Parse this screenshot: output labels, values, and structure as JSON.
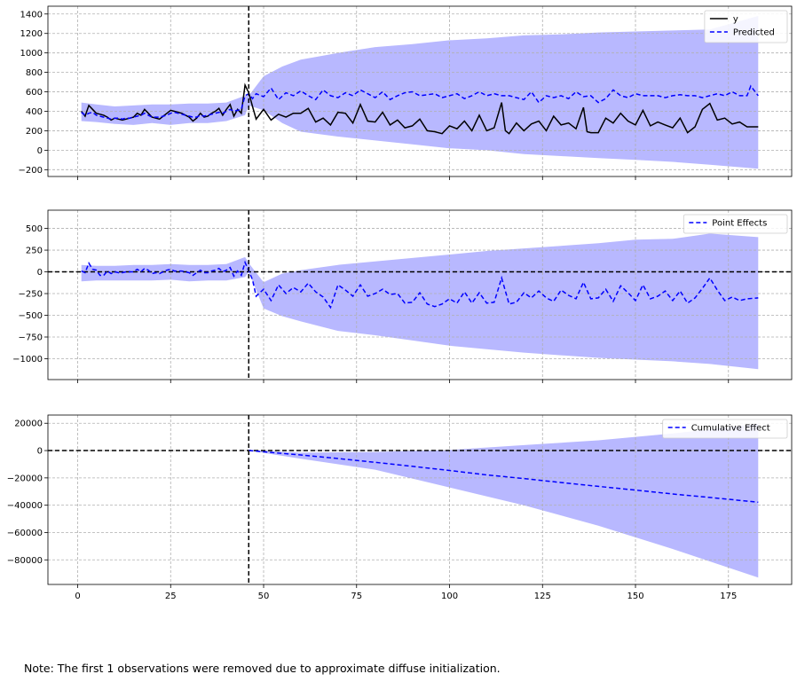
{
  "chart_data": [
    {
      "type": "line",
      "title": "",
      "xlabel": "",
      "ylabel": "",
      "xlim": [
        -8,
        192
      ],
      "ylim": [
        -270,
        1480
      ],
      "x_ticks": [
        0,
        25,
        50,
        75,
        100,
        125,
        150,
        175
      ],
      "show_x_tick_labels": false,
      "y_ticks": [
        -200,
        0,
        200,
        400,
        600,
        800,
        1000,
        1200,
        1400
      ],
      "y_tick_labels": [
        "−200",
        "0",
        "200",
        "400",
        "600",
        "800",
        "1000",
        "1200",
        "1400"
      ],
      "grid": true,
      "legend_position": "top-right",
      "vline_x": 46,
      "hline_y": null,
      "band": {
        "x": [
          1,
          5,
          10,
          15,
          20,
          25,
          30,
          35,
          40,
          45,
          46,
          50,
          55,
          60,
          70,
          80,
          90,
          100,
          110,
          120,
          130,
          140,
          150,
          160,
          170,
          183
        ],
        "upper": [
          490,
          470,
          450,
          460,
          470,
          470,
          480,
          480,
          490,
          560,
          560,
          760,
          860,
          930,
          1000,
          1060,
          1090,
          1130,
          1150,
          1180,
          1190,
          1210,
          1220,
          1230,
          1240,
          1380
        ],
        "lower": [
          300,
          290,
          270,
          260,
          280,
          260,
          280,
          280,
          300,
          360,
          460,
          410,
          280,
          190,
          140,
          100,
          60,
          20,
          0,
          -40,
          -60,
          -80,
          -100,
          -120,
          -150,
          -190
        ]
      },
      "series": [
        {
          "name": "y",
          "color": "#000000",
          "dash": "solid",
          "x": [
            1,
            2,
            3,
            4,
            5,
            6,
            7,
            8,
            9,
            10,
            11,
            12,
            13,
            14,
            15,
            16,
            17,
            18,
            19,
            20,
            21,
            22,
            23,
            24,
            25,
            26,
            27,
            28,
            29,
            30,
            31,
            32,
            33,
            34,
            35,
            36,
            37,
            38,
            39,
            40,
            41,
            42,
            43,
            44,
            45,
            46,
            47,
            48,
            50,
            52,
            54,
            56,
            58,
            60,
            62,
            64,
            66,
            68,
            70,
            72,
            74,
            76,
            78,
            80,
            82,
            84,
            86,
            88,
            90,
            92,
            94,
            96,
            98,
            100,
            102,
            104,
            106,
            108,
            110,
            112,
            114,
            115,
            116,
            118,
            120,
            122,
            124,
            126,
            128,
            130,
            132,
            134,
            136,
            137,
            138,
            140,
            142,
            144,
            146,
            148,
            150,
            152,
            154,
            156,
            158,
            160,
            162,
            164,
            166,
            168,
            170,
            172,
            174,
            176,
            178,
            180,
            183
          ],
          "y": [
            400,
            350,
            460,
            420,
            380,
            370,
            360,
            340,
            310,
            330,
            320,
            310,
            320,
            330,
            340,
            380,
            360,
            420,
            380,
            340,
            330,
            320,
            350,
            380,
            410,
            400,
            390,
            380,
            360,
            340,
            300,
            330,
            380,
            340,
            350,
            380,
            400,
            430,
            360,
            420,
            470,
            350,
            420,
            380,
            670,
            590,
            450,
            320,
            420,
            310,
            370,
            340,
            380,
            380,
            430,
            290,
            330,
            260,
            390,
            380,
            280,
            470,
            300,
            290,
            390,
            260,
            310,
            230,
            250,
            320,
            200,
            190,
            170,
            250,
            220,
            300,
            200,
            360,
            200,
            230,
            490,
            200,
            170,
            280,
            200,
            270,
            300,
            200,
            350,
            260,
            280,
            220,
            440,
            190,
            180,
            180,
            330,
            280,
            380,
            300,
            260,
            410,
            250,
            290,
            260,
            230,
            330,
            180,
            240,
            420,
            480,
            310,
            330,
            270,
            290,
            240,
            240
          ]
        },
        {
          "name": "Predicted",
          "color": "#0000ff",
          "dash": "dashed",
          "x": [
            1,
            2,
            3,
            4,
            5,
            6,
            7,
            8,
            9,
            10,
            11,
            12,
            13,
            14,
            15,
            16,
            17,
            18,
            19,
            20,
            21,
            22,
            23,
            24,
            25,
            26,
            27,
            28,
            29,
            30,
            31,
            32,
            33,
            34,
            35,
            36,
            37,
            38,
            39,
            40,
            41,
            42,
            43,
            44,
            45,
            46,
            47,
            48,
            50,
            52,
            54,
            56,
            58,
            60,
            62,
            64,
            66,
            68,
            70,
            72,
            74,
            76,
            78,
            80,
            82,
            84,
            86,
            88,
            90,
            92,
            94,
            96,
            98,
            100,
            102,
            104,
            106,
            108,
            110,
            112,
            114,
            116,
            118,
            120,
            122,
            124,
            126,
            128,
            130,
            132,
            134,
            136,
            138,
            140,
            142,
            144,
            146,
            148,
            150,
            152,
            154,
            156,
            158,
            160,
            162,
            164,
            166,
            168,
            170,
            172,
            174,
            176,
            178,
            180,
            181,
            183
          ],
          "y": [
            390,
            360,
            380,
            390,
            360,
            350,
            340,
            330,
            320,
            330,
            330,
            320,
            330,
            330,
            340,
            350,
            360,
            380,
            360,
            340,
            340,
            340,
            350,
            360,
            380,
            390,
            380,
            370,
            360,
            350,
            340,
            340,
            360,
            350,
            360,
            370,
            380,
            390,
            380,
            400,
            420,
            400,
            410,
            420,
            560,
            580,
            530,
            580,
            550,
            640,
            520,
            590,
            560,
            610,
            560,
            520,
            620,
            560,
            540,
            590,
            560,
            620,
            580,
            540,
            600,
            520,
            560,
            590,
            600,
            560,
            570,
            580,
            540,
            560,
            580,
            530,
            560,
            600,
            560,
            580,
            560,
            560,
            540,
            520,
            600,
            490,
            560,
            540,
            560,
            530,
            600,
            550,
            560,
            490,
            530,
            620,
            560,
            540,
            580,
            560,
            560,
            560,
            540,
            560,
            570,
            560,
            560,
            540,
            560,
            580,
            560,
            600,
            560,
            560,
            660,
            560
          ]
        }
      ]
    },
    {
      "type": "line",
      "title": "",
      "xlabel": "",
      "ylabel": "",
      "xlim": [
        -8,
        192
      ],
      "ylim": [
        -1240,
        710
      ],
      "x_ticks": [
        0,
        25,
        50,
        75,
        100,
        125,
        150,
        175
      ],
      "show_x_tick_labels": false,
      "y_ticks": [
        -1000,
        -750,
        -500,
        -250,
        0,
        250,
        500
      ],
      "y_tick_labels": [
        "−1000",
        "−750",
        "−500",
        "−250",
        "0",
        "250",
        "500"
      ],
      "grid": true,
      "legend_position": "top-right",
      "vline_x": 46,
      "hline_y": 0,
      "band": {
        "x": [
          1,
          5,
          10,
          15,
          20,
          25,
          30,
          35,
          40,
          45,
          46,
          50,
          55,
          60,
          70,
          80,
          90,
          100,
          110,
          120,
          130,
          140,
          150,
          160,
          170,
          183
        ],
        "upper": [
          80,
          70,
          70,
          80,
          80,
          90,
          80,
          80,
          90,
          170,
          100,
          -120,
          -20,
          20,
          80,
          120,
          160,
          200,
          240,
          270,
          300,
          330,
          370,
          380,
          440,
          400
        ],
        "lower": [
          -110,
          -100,
          -100,
          -100,
          -100,
          -90,
          -110,
          -100,
          -100,
          -60,
          0,
          -420,
          -510,
          -570,
          -680,
          -730,
          -790,
          -850,
          -890,
          -930,
          -960,
          -990,
          -1010,
          -1030,
          -1060,
          -1120
        ]
      },
      "series": [
        {
          "name": "Point Effects",
          "color": "#0000ff",
          "dash": "dashed",
          "x": [
            1,
            2,
            3,
            4,
            5,
            6,
            7,
            8,
            9,
            10,
            11,
            12,
            13,
            14,
            15,
            16,
            17,
            18,
            19,
            20,
            21,
            22,
            23,
            24,
            25,
            26,
            27,
            28,
            29,
            30,
            31,
            32,
            33,
            34,
            35,
            36,
            37,
            38,
            39,
            40,
            41,
            42,
            43,
            44,
            45,
            46,
            47,
            48,
            50,
            52,
            54,
            56,
            58,
            60,
            62,
            64,
            66,
            68,
            70,
            72,
            74,
            76,
            78,
            80,
            82,
            84,
            86,
            88,
            90,
            92,
            94,
            96,
            98,
            100,
            102,
            104,
            106,
            108,
            110,
            112,
            114,
            116,
            118,
            120,
            122,
            124,
            126,
            128,
            130,
            132,
            134,
            136,
            138,
            140,
            142,
            144,
            146,
            148,
            150,
            152,
            154,
            156,
            158,
            160,
            162,
            164,
            166,
            168,
            170,
            172,
            174,
            176,
            178,
            180,
            183
          ],
          "y": [
            10,
            -10,
            100,
            30,
            20,
            -40,
            -40,
            10,
            -20,
            0,
            -10,
            -10,
            0,
            0,
            0,
            30,
            0,
            40,
            20,
            -20,
            -10,
            -20,
            0,
            20,
            30,
            10,
            10,
            10,
            0,
            -10,
            -40,
            -10,
            20,
            -10,
            -10,
            10,
            20,
            40,
            0,
            20,
            50,
            -50,
            10,
            -40,
            110,
            10,
            -90,
            -280,
            -200,
            -330,
            -150,
            -250,
            -180,
            -230,
            -130,
            -230,
            -290,
            -410,
            -150,
            -210,
            -280,
            -150,
            -280,
            -250,
            -200,
            -260,
            -250,
            -360,
            -350,
            -240,
            -370,
            -400,
            -370,
            -310,
            -360,
            -230,
            -360,
            -240,
            -360,
            -350,
            -70,
            -370,
            -350,
            -240,
            -300,
            -220,
            -300,
            -340,
            -210,
            -270,
            -310,
            -120,
            -310,
            -300,
            -200,
            -340,
            -160,
            -240,
            -330,
            -150,
            -310,
            -280,
            -220,
            -330,
            -220,
            -360,
            -300,
            -190,
            -70,
            -210,
            -330,
            -290,
            -330,
            -310,
            -300
          ]
        }
      ]
    },
    {
      "type": "area",
      "title": "",
      "xlabel": "",
      "ylabel": "",
      "xlim": [
        -8,
        192
      ],
      "ylim": [
        -98000,
        26000
      ],
      "x_ticks": [
        0,
        25,
        50,
        75,
        100,
        125,
        150,
        175
      ],
      "x_tick_labels": [
        "0",
        "25",
        "50",
        "75",
        "100",
        "125",
        "150",
        "175"
      ],
      "show_x_tick_labels": true,
      "y_ticks": [
        -80000,
        -60000,
        -40000,
        -20000,
        0,
        20000
      ],
      "y_tick_labels": [
        "−80000",
        "−60000",
        "−40000",
        "−20000",
        "0",
        "20000"
      ],
      "grid": true,
      "legend_position": "top-right",
      "vline_x": 46,
      "hline_y": 0,
      "band": {
        "x": [
          46,
          60,
          80,
          100,
          120,
          140,
          160,
          183
        ],
        "upper": [
          0,
          -1500,
          -1000,
          500,
          4000,
          7500,
          12500,
          19500
        ],
        "lower": [
          0,
          -6000,
          -14000,
          -27000,
          -40000,
          -55000,
          -72000,
          -93000
        ]
      },
      "series": [
        {
          "name": "Cumulative Effect",
          "color": "#0000ff",
          "dash": "dashed",
          "x": [
            46,
            50,
            60,
            70,
            80,
            90,
            100,
            110,
            120,
            130,
            140,
            150,
            160,
            170,
            183
          ],
          "y": [
            0,
            -900,
            -3200,
            -5800,
            -8600,
            -11500,
            -14600,
            -17800,
            -20500,
            -23400,
            -26200,
            -28900,
            -31800,
            -34300,
            -37800
          ]
        }
      ]
    }
  ],
  "note": "Note: The first 1 observations were removed due to approximate diffuse initialization."
}
